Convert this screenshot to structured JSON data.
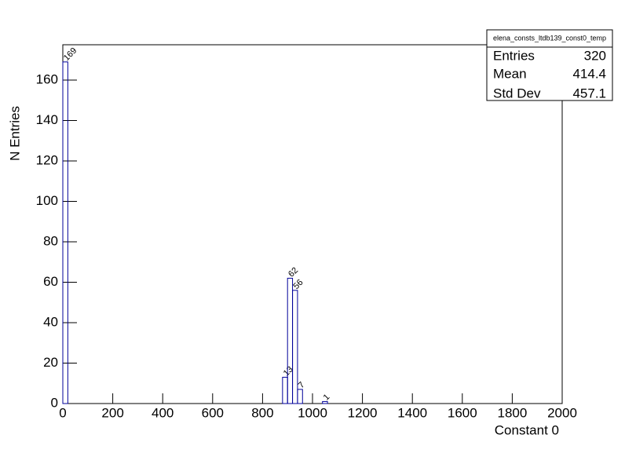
{
  "chart_data": {
    "type": "histogram",
    "x_label": "Constant 0",
    "y_label": "N Entries",
    "bins": [
      0,
      20,
      40,
      60,
      80,
      100,
      120,
      140,
      160,
      180,
      200,
      220,
      240,
      260,
      280,
      300,
      320,
      340,
      360,
      380,
      400,
      420,
      440,
      460,
      480,
      500,
      520,
      540,
      560,
      580,
      600,
      620,
      640,
      660,
      680,
      700,
      720,
      740,
      760,
      780,
      800,
      820,
      840,
      860,
      880,
      900,
      920,
      940,
      960,
      980,
      1000,
      1020,
      1040,
      1060,
      1080,
      1100,
      1120,
      1140,
      1160,
      1180,
      1200,
      1220,
      1240,
      1260,
      1280,
      1300,
      1320,
      1340,
      1360,
      1380,
      1400,
      1420,
      1440,
      1460,
      1480,
      1500,
      1520,
      1540,
      1560,
      1580,
      1600,
      1620,
      1640,
      1660,
      1680,
      1700,
      1720,
      1740,
      1760,
      1780,
      1800,
      1820,
      1840,
      1860,
      1880,
      1900,
      1920,
      1940,
      1960,
      1980,
      2000
    ],
    "counts": [
      169,
      0,
      0,
      0,
      0,
      0,
      0,
      0,
      0,
      0,
      0,
      0,
      0,
      0,
      0,
      0,
      0,
      0,
      0,
      0,
      0,
      0,
      0,
      0,
      0,
      0,
      0,
      0,
      0,
      0,
      0,
      0,
      0,
      0,
      0,
      0,
      0,
      0,
      0,
      0,
      0,
      0,
      0,
      0,
      13,
      62,
      56,
      7,
      0,
      0,
      0,
      0,
      1,
      0,
      0,
      0,
      0,
      0,
      0,
      0,
      0,
      0,
      0,
      0,
      0,
      0,
      0,
      0,
      0,
      0,
      0,
      0,
      0,
      0,
      0,
      0,
      0,
      0,
      0,
      0,
      0,
      0,
      0,
      0,
      0,
      0,
      0,
      0,
      0,
      0,
      0,
      0,
      0,
      0,
      0,
      0,
      0,
      0,
      0,
      0
    ],
    "color": "#000099",
    "xlim": [
      0,
      2000
    ],
    "xticks": [
      0,
      200,
      400,
      600,
      800,
      1000,
      1200,
      1400,
      1600,
      1800,
      2000
    ],
    "ylim": [
      0,
      177.5
    ],
    "yticks": [
      0,
      20,
      40,
      60,
      80,
      100,
      120,
      140,
      160
    ],
    "stats": {
      "title": "elena_consts_ltdb139_const0_temp",
      "rows": [
        [
          "Entries",
          320
        ],
        [
          "Mean",
          414.4
        ],
        [
          "Std Dev",
          457.1
        ]
      ]
    }
  }
}
